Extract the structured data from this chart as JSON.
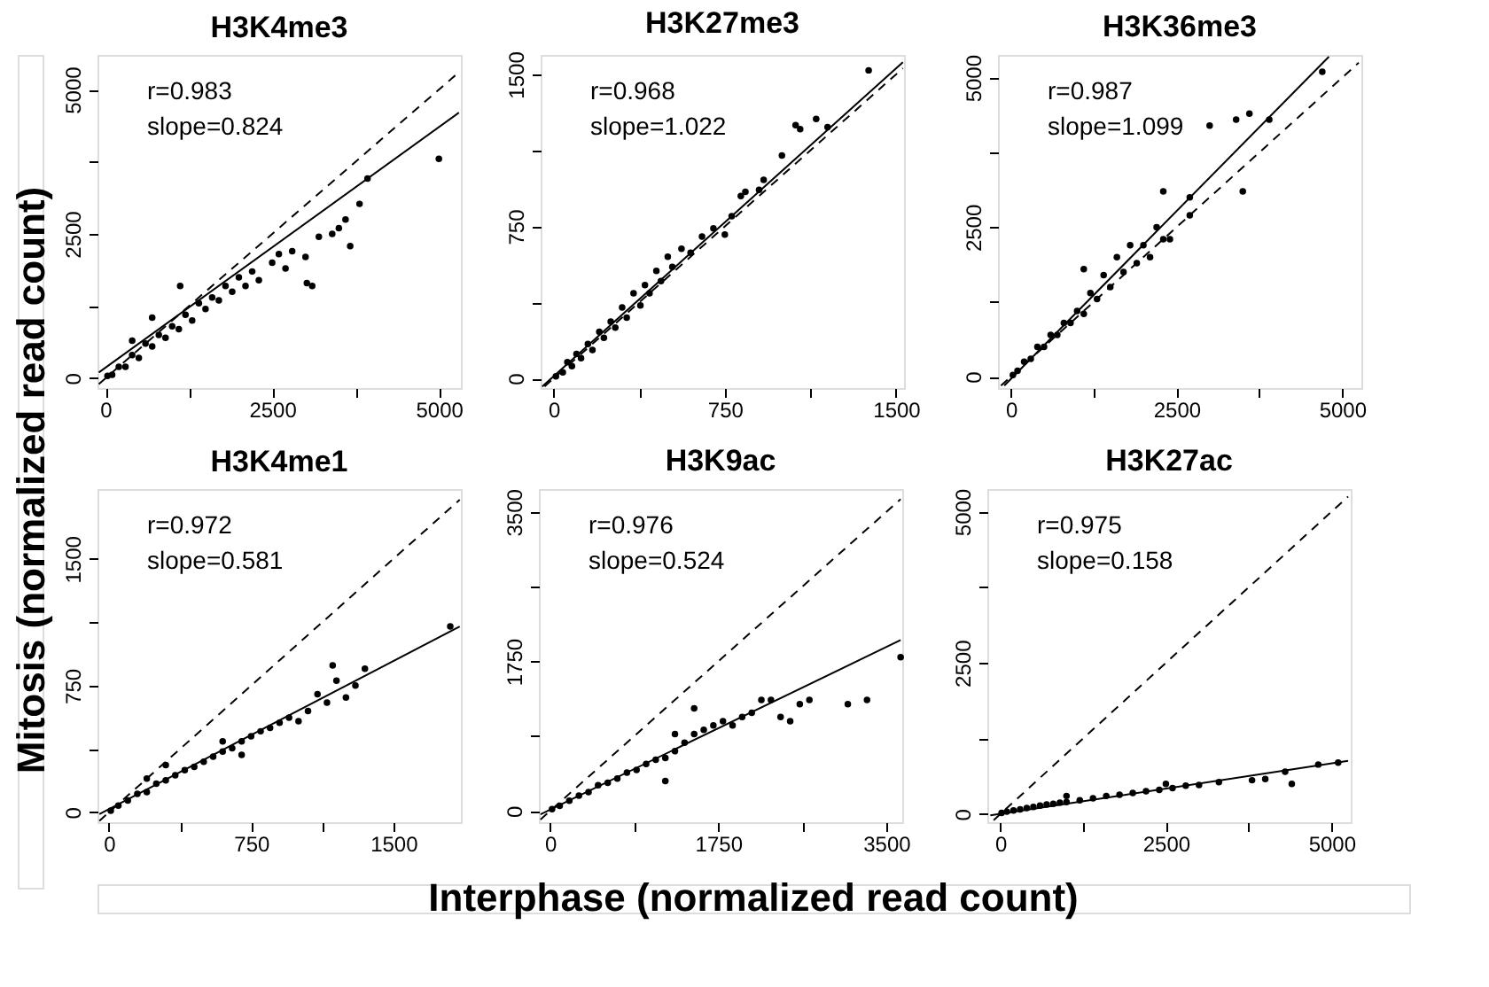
{
  "chart_data": [
    {
      "type": "scatter",
      "title": "H3K4me3",
      "xlim": [
        -120,
        5330
      ],
      "ylim": [
        -170,
        5600
      ],
      "xticks": [
        0,
        {
          "value": 1250,
          "label": null
        },
        2500,
        {
          "value": 3750,
          "label": null
        },
        5000
      ],
      "yticks": [
        0,
        {
          "value": 1250,
          "label": null
        },
        2500,
        {
          "value": 3750,
          "label": null
        },
        5000
      ],
      "annotations": [
        "r=0.983",
        "slope=0.824"
      ],
      "marker": "circle",
      "series": [
        {
          "type": "scatter",
          "color": "#000000",
          "x": [
            30,
            100,
            200,
            300,
            400,
            400,
            500,
            600,
            700,
            700,
            800,
            900,
            1000,
            1100,
            1120,
            1200,
            1300,
            1400,
            1500,
            1600,
            1700,
            1800,
            1900,
            2000,
            2100,
            2200,
            2300,
            2500,
            2600,
            2700,
            2800,
            3000,
            3020,
            3100,
            3200,
            3400,
            3500,
            3600,
            3670,
            3810,
            3930,
            5000
          ],
          "values": [
            40,
            60,
            200,
            200,
            400,
            650,
            350,
            600,
            550,
            1050,
            750,
            700,
            900,
            850,
            1600,
            1100,
            1000,
            1300,
            1200,
            1400,
            1350,
            1600,
            1500,
            1750,
            1600,
            1850,
            1700,
            2000,
            2150,
            1900,
            2200,
            2100,
            1650,
            1600,
            2450,
            2500,
            2600,
            2750,
            2290,
            3020,
            3460,
            3800
          ]
        },
        {
          "type": "line",
          "color": "#000000",
          "line_style": "solid",
          "marker": "none",
          "x": [
            -100,
            5300
          ],
          "values": [
            100,
            4600
          ]
        },
        {
          "type": "line",
          "color": "#000000",
          "line_style": "dashed",
          "marker": "none",
          "x": [
            -100,
            5300
          ],
          "values": [
            -100,
            5300
          ]
        }
      ]
    },
    {
      "type": "scatter",
      "title": "H3K27me3",
      "xlim": [
        -57,
        1535
      ],
      "ylim": [
        -48,
        1596
      ],
      "xticks": [
        0,
        {
          "value": 375,
          "label": null
        },
        750,
        {
          "value": 1125,
          "label": null
        },
        1500
      ],
      "yticks": [
        0,
        {
          "value": 375,
          "label": null
        },
        750,
        {
          "value": 1125,
          "label": null
        },
        1500
      ],
      "annotations": [
        "r=0.968",
        "slope=1.022"
      ],
      "marker": "circle",
      "series": [
        {
          "type": "scatter",
          "color": "#000000",
          "x": [
            10,
            40,
            60,
            80,
            100,
            120,
            150,
            170,
            200,
            220,
            250,
            270,
            300,
            320,
            350,
            380,
            400,
            420,
            450,
            470,
            500,
            520,
            560,
            600,
            650,
            700,
            750,
            780,
            820,
            840,
            900,
            920,
            1000,
            1060,
            1080,
            1150,
            1200,
            1380
          ],
          "values": [
            10,
            30,
            80,
            60,
            120,
            100,
            170,
            140,
            230,
            200,
            280,
            250,
            350,
            300,
            420,
            360,
            460,
            420,
            530,
            480,
            600,
            550,
            640,
            620,
            700,
            740,
            710,
            800,
            900,
            920,
            930,
            980,
            1100,
            1250,
            1230,
            1280,
            1240,
            1520
          ]
        },
        {
          "type": "line",
          "color": "#000000",
          "line_style": "solid",
          "marker": "none",
          "x": [
            -50,
            1530
          ],
          "values": [
            -40,
            1560
          ]
        },
        {
          "type": "line",
          "color": "#000000",
          "line_style": "dashed",
          "marker": "none",
          "x": [
            -40,
            1530
          ],
          "values": [
            -40,
            1530
          ]
        }
      ]
    },
    {
      "type": "scatter",
      "title": "H3K36me3",
      "xlim": [
        -195,
        5290
      ],
      "ylim": [
        -190,
        5380
      ],
      "xticks": [
        0,
        {
          "value": 1250,
          "label": null
        },
        2500,
        {
          "value": 3750,
          "label": null
        },
        5000
      ],
      "yticks": [
        0,
        {
          "value": 1250,
          "label": null
        },
        2500,
        {
          "value": 3750,
          "label": null
        },
        5000
      ],
      "annotations": [
        "r=0.987",
        "slope=1.099"
      ],
      "marker": "circle",
      "series": [
        {
          "type": "scatter",
          "color": "#000000",
          "x": [
            30,
            100,
            200,
            300,
            400,
            500,
            600,
            700,
            800,
            900,
            1000,
            1100,
            1100,
            1200,
            1300,
            1400,
            1500,
            1600,
            1700,
            1800,
            1900,
            2000,
            2100,
            2200,
            2300,
            2300,
            2400,
            2700,
            2700,
            3000,
            3400,
            3500,
            3600,
            3900,
            4700
          ],
          "values": [
            30,
            100,
            250,
            300,
            500,
            500,
            700,
            700,
            900,
            900,
            1100,
            1050,
            1800,
            1400,
            1300,
            1700,
            1500,
            2000,
            1750,
            2200,
            1900,
            2200,
            2000,
            2500,
            2300,
            3100,
            2300,
            3000,
            2700,
            4200,
            4300,
            3100,
            4400,
            4300,
            5100
          ]
        },
        {
          "type": "line",
          "color": "#000000",
          "line_style": "solid",
          "marker": "none",
          "x": [
            -100,
            4800
          ],
          "values": [
            -150,
            5350
          ]
        },
        {
          "type": "line",
          "color": "#000000",
          "line_style": "dashed",
          "marker": "none",
          "x": [
            -150,
            5250
          ],
          "values": [
            -150,
            5250
          ]
        }
      ]
    },
    {
      "type": "scatter",
      "title": "H3K4me1",
      "ylabel": "Mitosis (normalized read count)",
      "xlim": [
        -60,
        1856
      ],
      "ylim": [
        -58,
        1913
      ],
      "xticks": [
        0,
        {
          "value": 375,
          "label": null
        },
        750,
        {
          "value": 1125,
          "label": null
        },
        1500
      ],
      "yticks": [
        0,
        {
          "value": 375,
          "label": null
        },
        750,
        {
          "value": 1125,
          "label": null
        },
        1500
      ],
      "annotations": [
        "r=0.972",
        "slope=0.581"
      ],
      "marker": "circle",
      "series": [
        {
          "type": "scatter",
          "color": "#000000",
          "x": [
            10,
            50,
            100,
            150,
            200,
            200,
            250,
            300,
            300,
            350,
            400,
            450,
            500,
            550,
            600,
            600,
            650,
            700,
            700,
            750,
            800,
            850,
            900,
            950,
            1000,
            1050,
            1100,
            1150,
            1180,
            1200,
            1250,
            1300,
            1350,
            1800
          ],
          "values": [
            10,
            40,
            70,
            110,
            120,
            200,
            170,
            190,
            280,
            220,
            250,
            270,
            300,
            330,
            360,
            420,
            380,
            420,
            340,
            450,
            480,
            500,
            530,
            560,
            540,
            600,
            700,
            650,
            870,
            780,
            680,
            750,
            850,
            1100
          ]
        },
        {
          "type": "line",
          "color": "#000000",
          "line_style": "solid",
          "marker": "none",
          "x": [
            -50,
            1850
          ],
          "values": [
            -10,
            1100
          ]
        },
        {
          "type": "line",
          "color": "#000000",
          "line_style": "dashed",
          "marker": "none",
          "x": [
            -50,
            1850
          ],
          "values": [
            -50,
            1850
          ]
        }
      ]
    },
    {
      "type": "scatter",
      "title": "H3K9ac",
      "xlabel": "Interphase (normalized read count)",
      "xlim": [
        -117,
        3667
      ],
      "ylim": [
        -132,
        3768
      ],
      "xticks": [
        0,
        {
          "value": 875,
          "label": null
        },
        1750,
        {
          "value": 2625,
          "label": null
        },
        3500
      ],
      "yticks": [
        0,
        {
          "value": 875,
          "label": null
        },
        1750,
        {
          "value": 2625,
          "label": null
        },
        3500
      ],
      "annotations": [
        "r=0.976",
        "slope=0.524"
      ],
      "marker": "circle",
      "series": [
        {
          "type": "scatter",
          "color": "#000000",
          "x": [
            20,
            100,
            200,
            300,
            400,
            500,
            600,
            700,
            800,
            900,
            1000,
            1100,
            1200,
            1200,
            1300,
            1300,
            1400,
            1500,
            1500,
            1600,
            1700,
            1800,
            1900,
            2000,
            2100,
            2200,
            2300,
            2400,
            2500,
            2600,
            2700,
            3100,
            3300,
            3650
          ],
          "values": [
            20,
            60,
            120,
            180,
            220,
            300,
            330,
            380,
            450,
            480,
            550,
            600,
            620,
            350,
            700,
            900,
            800,
            900,
            1200,
            950,
            1000,
            1050,
            1000,
            1100,
            1150,
            1300,
            1300,
            1100,
            1050,
            1250,
            1300,
            1250,
            1300,
            1800
          ]
        },
        {
          "type": "line",
          "color": "#000000",
          "line_style": "solid",
          "marker": "none",
          "x": [
            -100,
            3650
          ],
          "values": [
            -40,
            2000
          ]
        },
        {
          "type": "line",
          "color": "#000000",
          "line_style": "dashed",
          "marker": "none",
          "x": [
            -100,
            3650
          ],
          "values": [
            -100,
            3650
          ]
        }
      ]
    },
    {
      "type": "scatter",
      "title": "H3K27ac",
      "xlim": [
        -195,
        5290
      ],
      "ylim": [
        -134,
        5374
      ],
      "xticks": [
        0,
        {
          "value": 1250,
          "label": null
        },
        2500,
        {
          "value": 3750,
          "label": null
        },
        5000
      ],
      "yticks": [
        0,
        {
          "value": 1250,
          "label": null
        },
        2500,
        {
          "value": 3750,
          "label": null
        },
        5000
      ],
      "annotations": [
        "r=0.975",
        "slope=0.158"
      ],
      "marker": "circle",
      "series": [
        {
          "type": "scatter",
          "color": "#000000",
          "x": [
            20,
            100,
            200,
            300,
            400,
            500,
            600,
            700,
            800,
            900,
            1000,
            1000,
            1200,
            1400,
            1600,
            1800,
            2000,
            2200,
            2400,
            2500,
            2600,
            2800,
            3000,
            3300,
            3800,
            4000,
            4300,
            4400,
            4800,
            5100
          ],
          "values": [
            20,
            40,
            60,
            80,
            100,
            120,
            140,
            160,
            170,
            190,
            200,
            300,
            230,
            260,
            300,
            320,
            350,
            380,
            400,
            500,
            430,
            470,
            480,
            530,
            560,
            580,
            700,
            500,
            820,
            850
          ]
        },
        {
          "type": "line",
          "color": "#000000",
          "line_style": "solid",
          "marker": "none",
          "x": [
            -150,
            5250
          ],
          "values": [
            -20,
            880
          ]
        },
        {
          "type": "line",
          "color": "#000000",
          "line_style": "dashed",
          "marker": "none",
          "x": [
            -100,
            5250
          ],
          "values": [
            -100,
            5250
          ]
        }
      ]
    }
  ]
}
